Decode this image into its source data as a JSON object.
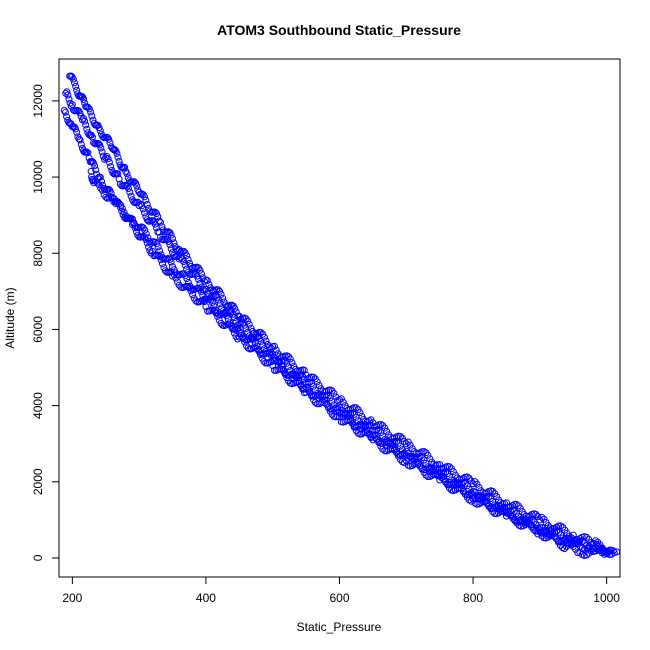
{
  "chart_data": {
    "type": "scatter",
    "title": "ATOM3 Southbound Static_Pressure",
    "xlabel": "Static_Pressure",
    "ylabel": "Altitude (m)",
    "xlim": [
      180,
      1020
    ],
    "ylim": [
      -500,
      13100
    ],
    "xticks": [
      200,
      400,
      600,
      800,
      1000
    ],
    "yticks": [
      0,
      2000,
      4000,
      6000,
      8000,
      10000,
      12000
    ],
    "grid": false,
    "legend": "none",
    "marker": "open-circle",
    "color": "#0000ff",
    "series": [
      {
        "points": [
          [
            196,
            12650
          ],
          [
            205,
            12380
          ],
          [
            220,
            11850
          ],
          [
            240,
            11300
          ],
          [
            260,
            10750
          ],
          [
            280,
            10150
          ],
          [
            300,
            9600
          ],
          [
            330,
            8850
          ],
          [
            360,
            8100
          ],
          [
            400,
            7300
          ],
          [
            450,
            6350
          ],
          [
            500,
            5550
          ],
          [
            550,
            4800
          ],
          [
            600,
            4150
          ],
          [
            650,
            3550
          ],
          [
            700,
            3000
          ],
          [
            750,
            2450
          ],
          [
            800,
            1950
          ],
          [
            850,
            1450
          ],
          [
            900,
            1000
          ],
          [
            950,
            600
          ],
          [
            980,
            380
          ],
          [
            1010,
            190
          ]
        ]
      },
      {
        "points": [
          [
            190,
            12200
          ],
          [
            200,
            11900
          ],
          [
            215,
            11500
          ],
          [
            230,
            11050
          ],
          [
            250,
            10500
          ],
          [
            270,
            9950
          ],
          [
            300,
            9250
          ],
          [
            330,
            8550
          ],
          [
            360,
            7850
          ],
          [
            400,
            7050
          ],
          [
            450,
            6150
          ],
          [
            500,
            5350
          ],
          [
            550,
            4600
          ],
          [
            600,
            3950
          ],
          [
            650,
            3350
          ],
          [
            700,
            2800
          ],
          [
            750,
            2250
          ],
          [
            800,
            1750
          ],
          [
            850,
            1250
          ],
          [
            900,
            800
          ],
          [
            950,
            420
          ],
          [
            990,
            200
          ],
          [
            1015,
            160
          ]
        ]
      },
      {
        "points": [
          [
            188,
            11750
          ],
          [
            198,
            11400
          ],
          [
            210,
            11000
          ],
          [
            225,
            10500
          ],
          [
            240,
            10000
          ],
          [
            260,
            9450
          ],
          [
            290,
            8750
          ],
          [
            320,
            8050
          ],
          [
            350,
            7400
          ],
          [
            400,
            6600
          ],
          [
            450,
            5800
          ],
          [
            500,
            5050
          ],
          [
            550,
            4350
          ],
          [
            600,
            3700
          ],
          [
            650,
            3100
          ],
          [
            700,
            2550
          ],
          [
            750,
            2050
          ],
          [
            800,
            1550
          ],
          [
            850,
            1100
          ],
          [
            900,
            680
          ],
          [
            940,
            300
          ],
          [
            960,
            150
          ],
          [
            1000,
            180
          ]
        ]
      },
      {
        "points": [
          [
            228,
            10150
          ],
          [
            232,
            9850
          ],
          [
            245,
            9650
          ],
          [
            265,
            9300
          ],
          [
            290,
            8900
          ],
          [
            320,
            8300
          ],
          [
            350,
            7650
          ],
          [
            400,
            6800
          ],
          [
            450,
            5950
          ],
          [
            500,
            5200
          ],
          [
            550,
            4480
          ],
          [
            600,
            3820
          ],
          [
            650,
            3230
          ],
          [
            700,
            2680
          ],
          [
            750,
            2150
          ],
          [
            800,
            1650
          ],
          [
            850,
            1180
          ],
          [
            900,
            740
          ],
          [
            950,
            380
          ],
          [
            1005,
            210
          ]
        ]
      }
    ]
  }
}
